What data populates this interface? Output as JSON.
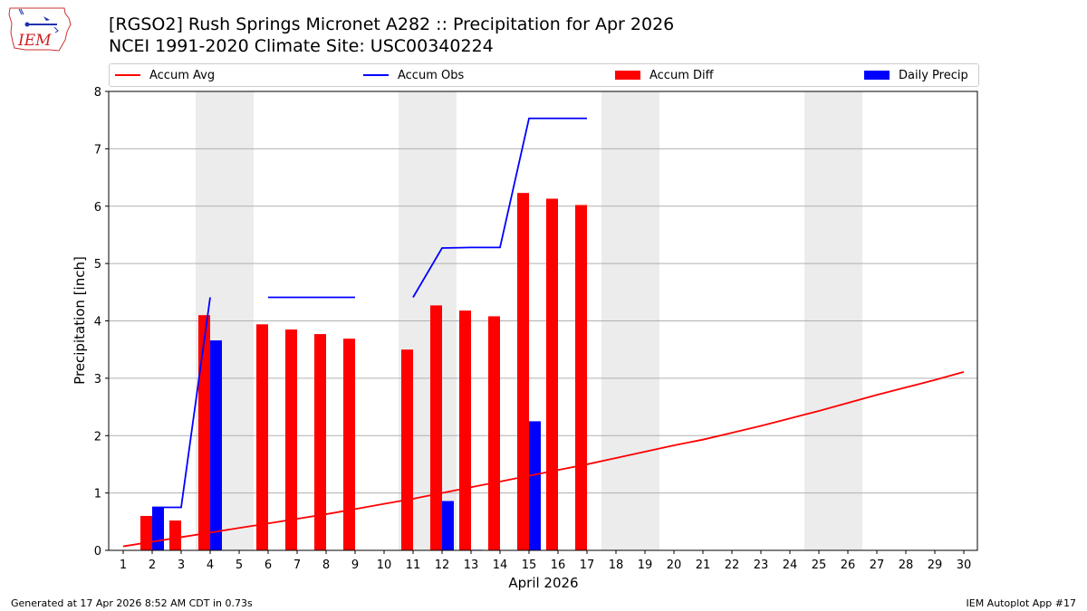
{
  "header": {
    "title_line1": "[RGSO2] Rush Springs Micronet A282 :: Precipitation for Apr 2026",
    "title_line2": "NCEI 1991-2020 Climate Site: USC00340224"
  },
  "logo": {
    "text": "IEM"
  },
  "footer": {
    "left": "Generated at 17 Apr 2026 8:52 AM CDT in 0.73s",
    "right": "IEM Autoplot App #17"
  },
  "colors": {
    "avg": "#ff0000",
    "obs": "#0000ff",
    "diff": "#ff0000",
    "daily": "#0000ff",
    "weekend_shade": "#ececec",
    "grid": "#b0b0b0"
  },
  "chart_data": {
    "type": "bar",
    "xlabel": "April 2026",
    "ylabel": "Precipitation [inch]",
    "xlim": [
      1,
      30
    ],
    "ylim": [
      0,
      8
    ],
    "x_ticks": [
      1,
      2,
      3,
      4,
      5,
      6,
      7,
      8,
      9,
      10,
      11,
      12,
      13,
      14,
      15,
      16,
      17,
      18,
      19,
      20,
      21,
      22,
      23,
      24,
      25,
      26,
      27,
      28,
      29,
      30
    ],
    "y_ticks": [
      0,
      1,
      2,
      3,
      4,
      5,
      6,
      7,
      8
    ],
    "grid": "y",
    "legend": "top, above plot",
    "shaded_weekend_days": [
      [
        4,
        5
      ],
      [
        11,
        12
      ],
      [
        18,
        19
      ],
      [
        25,
        26
      ]
    ],
    "series": [
      {
        "name": "Accum Avg",
        "kind": "line",
        "x": [
          1,
          2,
          3,
          4,
          5,
          6,
          7,
          8,
          9,
          10,
          11,
          12,
          13,
          14,
          15,
          16,
          17,
          18,
          19,
          20,
          21,
          22,
          23,
          24,
          25,
          26,
          27,
          28,
          29,
          30
        ],
        "values": [
          0.07,
          0.15,
          0.23,
          0.31,
          0.39,
          0.47,
          0.55,
          0.63,
          0.72,
          0.81,
          0.9,
          1.0,
          1.1,
          1.2,
          1.3,
          1.4,
          1.5,
          1.61,
          1.72,
          1.83,
          1.93,
          2.05,
          2.17,
          2.3,
          2.43,
          2.57,
          2.71,
          2.84,
          2.97,
          3.11
        ]
      },
      {
        "name": "Accum Obs",
        "kind": "line",
        "segments": [
          {
            "x": [
              2,
              3,
              4
            ],
            "values": [
              0.75,
              0.75,
              4.41
            ]
          },
          {
            "x": [
              6,
              7,
              8,
              9
            ],
            "values": [
              4.41,
              4.41,
              4.41,
              4.41
            ]
          },
          {
            "x": [
              11,
              12,
              13,
              14,
              15,
              16,
              17
            ],
            "values": [
              4.41,
              5.27,
              5.28,
              5.28,
              7.53,
              7.53,
              7.53
            ]
          }
        ]
      },
      {
        "name": "Accum Diff",
        "kind": "bar",
        "x": [
          2,
          3,
          4,
          6,
          7,
          8,
          9,
          11,
          12,
          13,
          14,
          15,
          16,
          17
        ],
        "values": [
          0.6,
          0.52,
          4.1,
          3.94,
          3.85,
          3.77,
          3.69,
          3.5,
          4.27,
          4.18,
          4.08,
          6.23,
          6.13,
          6.02
        ]
      },
      {
        "name": "Daily Precip",
        "kind": "bar",
        "x": [
          2,
          4,
          12,
          13,
          15
        ],
        "values": [
          0.75,
          3.66,
          0.86,
          0.01,
          2.25
        ]
      }
    ]
  }
}
